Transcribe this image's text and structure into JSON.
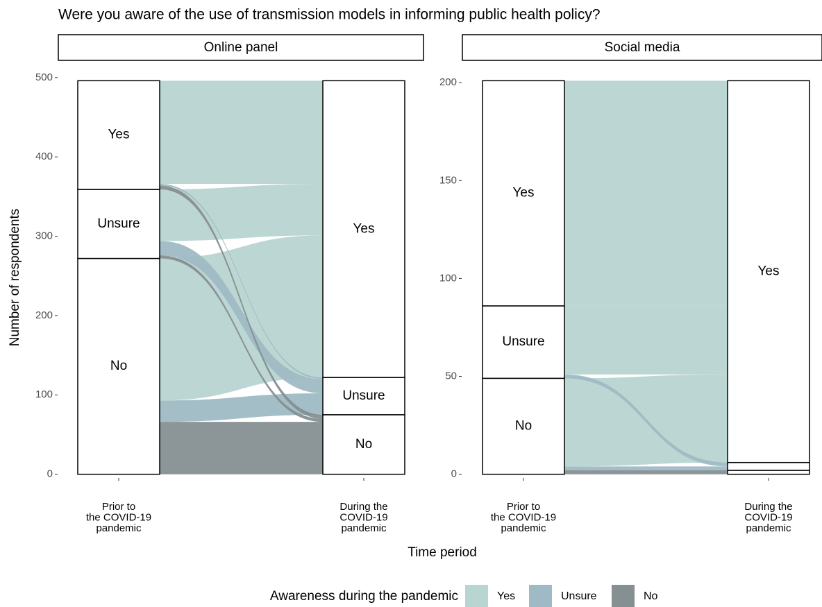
{
  "title": "Were you aware of the use of transmission models in informing public health policy?",
  "x_label": "Time period",
  "y_label": "Number of respondents",
  "legend": {
    "title": "Awareness during the pandemic",
    "items": [
      {
        "name": "Yes",
        "color": "#b8d5d1"
      },
      {
        "name": "Unsure",
        "color": "#9fbac4"
      },
      {
        "name": "No",
        "color": "#868f91"
      }
    ]
  },
  "chart_data": [
    {
      "type": "alluvial",
      "panel": "Online panel",
      "categories": [
        [
          "Prior to",
          "the COVID-19",
          "pandemic"
        ],
        [
          "During the",
          "COVID-19",
          "pandemic"
        ]
      ],
      "ylim": [
        -24.8,
        520.8
      ],
      "yticks": [
        0,
        100,
        200,
        300,
        400,
        500
      ],
      "strata": [
        {
          "labels": [
            "No",
            "Unsure",
            "Yes"
          ]
        },
        {
          "labels": [
            "No",
            "Unsure",
            "Yes"
          ]
        }
      ],
      "flows": [
        {
          "from": "No",
          "to": "No",
          "value": 66
        },
        {
          "from": "No",
          "to": "Unsure",
          "value": 27
        },
        {
          "from": "No",
          "to": "Yes",
          "value": 179
        },
        {
          "from": "Unsure",
          "to": "No",
          "value": 4
        },
        {
          "from": "Unsure",
          "to": "Unsure",
          "value": 18
        },
        {
          "from": "Unsure",
          "to": "Yes",
          "value": 65
        },
        {
          "from": "Yes",
          "to": "No",
          "value": 5
        },
        {
          "from": "Yes",
          "to": "Unsure",
          "value": 2
        },
        {
          "from": "Yes",
          "to": "Yes",
          "value": 130
        }
      ]
    },
    {
      "type": "alluvial",
      "panel": "Social media",
      "categories": [
        [
          "Prior to",
          "the COVID-19",
          "pandemic"
        ],
        [
          "During the",
          "COVID-19",
          "pandemic"
        ]
      ],
      "ylim": [
        -10.05,
        211.05
      ],
      "yticks": [
        0,
        50,
        100,
        150,
        200
      ],
      "strata": [
        {
          "labels": [
            "No",
            "Unsure",
            "Yes"
          ]
        },
        {
          "labels": [
            null,
            null,
            "Yes"
          ]
        }
      ],
      "flows": [
        {
          "from": "No",
          "to": "No",
          "value": 2
        },
        {
          "from": "No",
          "to": "Unsure",
          "value": 2
        },
        {
          "from": "No",
          "to": "Yes",
          "value": 45
        },
        {
          "from": "Unsure",
          "to": "Unsure",
          "value": 2
        },
        {
          "from": "Unsure",
          "to": "Yes",
          "value": 35
        },
        {
          "from": "Yes",
          "to": "Yes",
          "value": 115
        }
      ]
    }
  ]
}
